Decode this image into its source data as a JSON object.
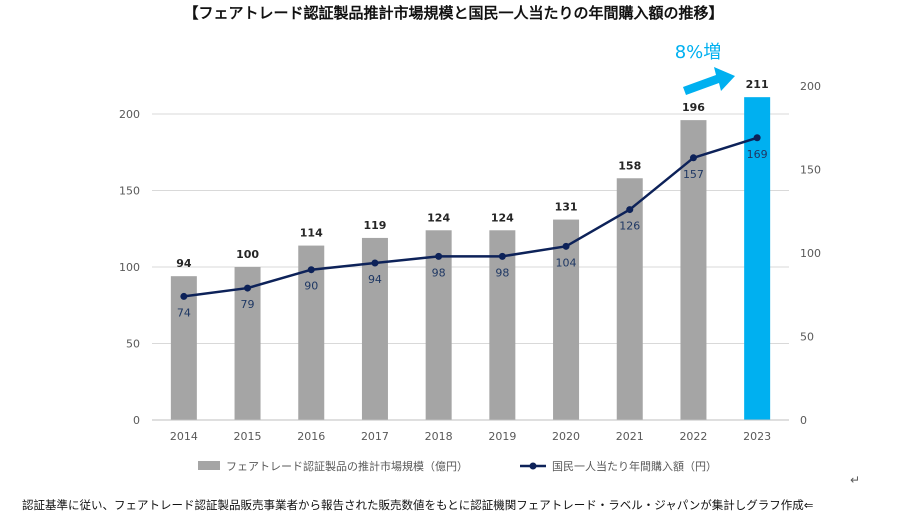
{
  "chart_data": {
    "type": "bar+line",
    "title": "【フェアトレード認証製品推計市場規模と国民一人当たりの年間購入額の推移】",
    "categories": [
      "2014",
      "2015",
      "2016",
      "2017",
      "2018",
      "2019",
      "2020",
      "2021",
      "2022",
      "2023"
    ],
    "series": [
      {
        "name": "フェアトレード認証製品の推計市場規模（億円）",
        "type": "bar",
        "axis": "left",
        "values": [
          94,
          100,
          114,
          119,
          124,
          124,
          131,
          158,
          196,
          211
        ],
        "color": "#a5a5a5",
        "highlight_color": "#00b0f0",
        "highlight_index": 9
      },
      {
        "name": "国民一人当たり年間購入額（円）",
        "type": "line",
        "axis": "right",
        "values": [
          74,
          79,
          90,
          94,
          98,
          98,
          104,
          126,
          157,
          169
        ],
        "color": "#0d2259"
      }
    ],
    "left_axis": {
      "min": 0,
      "max": 200,
      "ticks": [
        0,
        50,
        100,
        150,
        200
      ]
    },
    "right_axis": {
      "min": 0,
      "max": 200,
      "ticks": [
        0,
        50,
        100,
        150,
        200
      ]
    },
    "annotation": {
      "text": "8%増",
      "color": "#00b0f0"
    },
    "legend_position": "bottom",
    "grid": true
  },
  "caption": "認証基準に従い、フェアトレード認証製品販売事業者から報告された販売数値をもとに認証機関フェアトレード・ラベル・ジャパンが集計しグラフ作成⇐",
  "return_mark": "↵"
}
